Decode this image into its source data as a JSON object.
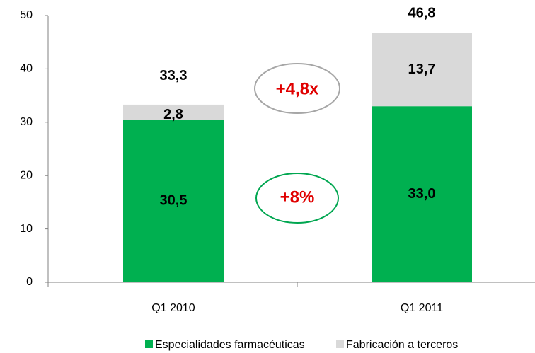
{
  "chart_data": {
    "type": "stacked_bar",
    "categories": [
      "Q1 2010",
      "Q1 2011"
    ],
    "series": [
      {
        "name": "Especialidades farmacéuticas",
        "color": "#00b050",
        "values": [
          30.5,
          33.0
        ],
        "value_labels": [
          "30,5",
          "33,0"
        ]
      },
      {
        "name": "Fabricación a terceros",
        "color": "#d9d9d9",
        "values": [
          2.8,
          13.7
        ],
        "value_labels": [
          "2,8",
          "13,7"
        ]
      }
    ],
    "totals": [
      33.3,
      46.8
    ],
    "total_labels": [
      "33,3",
      "46,8"
    ],
    "annotations": [
      "+4,8x",
      "+8%"
    ],
    "ylim": [
      0,
      50
    ],
    "yticks": [
      0,
      10,
      20,
      30,
      40,
      50
    ]
  }
}
